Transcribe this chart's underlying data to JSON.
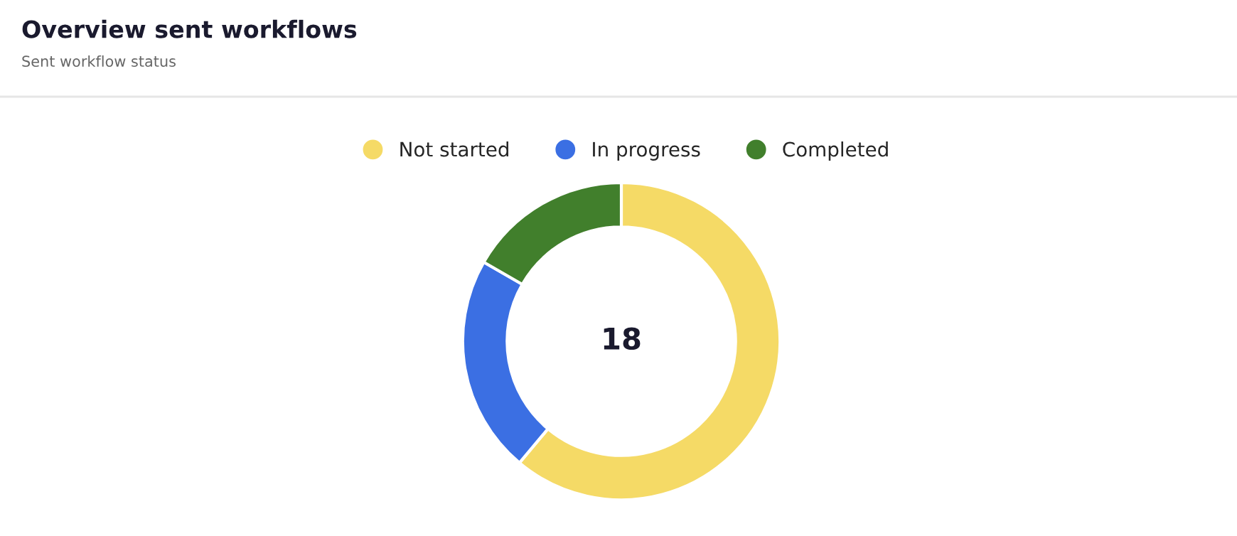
{
  "chart_data": {
    "type": "donut",
    "title": "Overview sent workflows",
    "subtitle": "Sent workflow status",
    "categories": [
      "Not started",
      "In progress",
      "Completed"
    ],
    "values": [
      61.1,
      22.2,
      16.7
    ],
    "colors": [
      "#f5da66",
      "#3b6fe3",
      "#417f2c"
    ],
    "annotations": [
      "18"
    ],
    "legend": "top"
  }
}
